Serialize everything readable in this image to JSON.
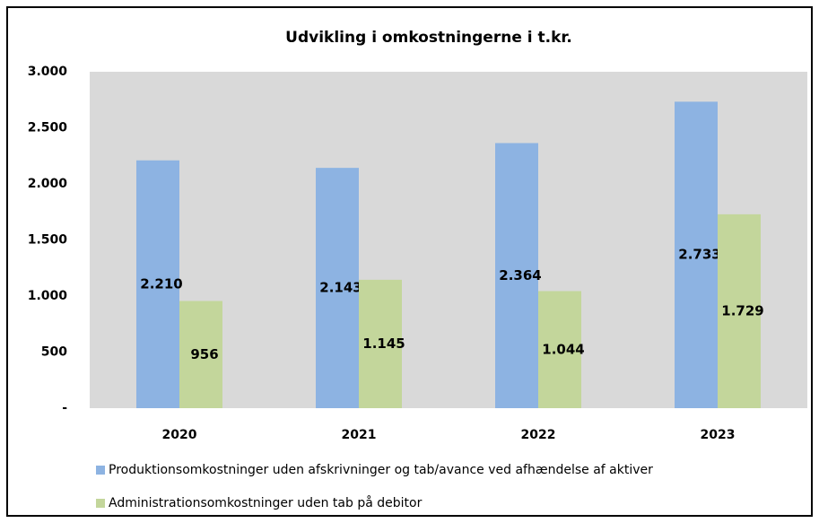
{
  "chart_data": {
    "type": "bar",
    "title": "Udvikling i omkostningerne i t.kr.",
    "categories": [
      "2020",
      "2021",
      "2022",
      "2023"
    ],
    "series": [
      {
        "name": "Produktionsomkostninger uden afskrivninger og tab/avance ved afhændelse af aktiver",
        "color": "#8db3e2",
        "values": [
          2210,
          2143,
          2364,
          2733
        ],
        "value_labels": [
          "2.210",
          "2.143",
          "2.364",
          "2.733"
        ]
      },
      {
        "name": "Administrationsomkostninger uden tab på debitor",
        "color": "#c3d69b",
        "values": [
          956,
          1145,
          1044,
          1729
        ],
        "value_labels": [
          "956",
          "1.145",
          "1.044",
          "1.729"
        ]
      }
    ],
    "ylim": [
      0,
      3000
    ],
    "yticks": [
      {
        "value": 0,
        "label": "-"
      },
      500,
      {
        "value": 1000,
        "label": "1.000"
      },
      {
        "value": 1500,
        "label": "1.500"
      },
      {
        "value": 2000,
        "label": "2.000"
      },
      {
        "value": 2500,
        "label": "2.500"
      },
      {
        "value": 3000,
        "label": "3.000"
      }
    ],
    "plot_background": "#d9d9d9"
  }
}
